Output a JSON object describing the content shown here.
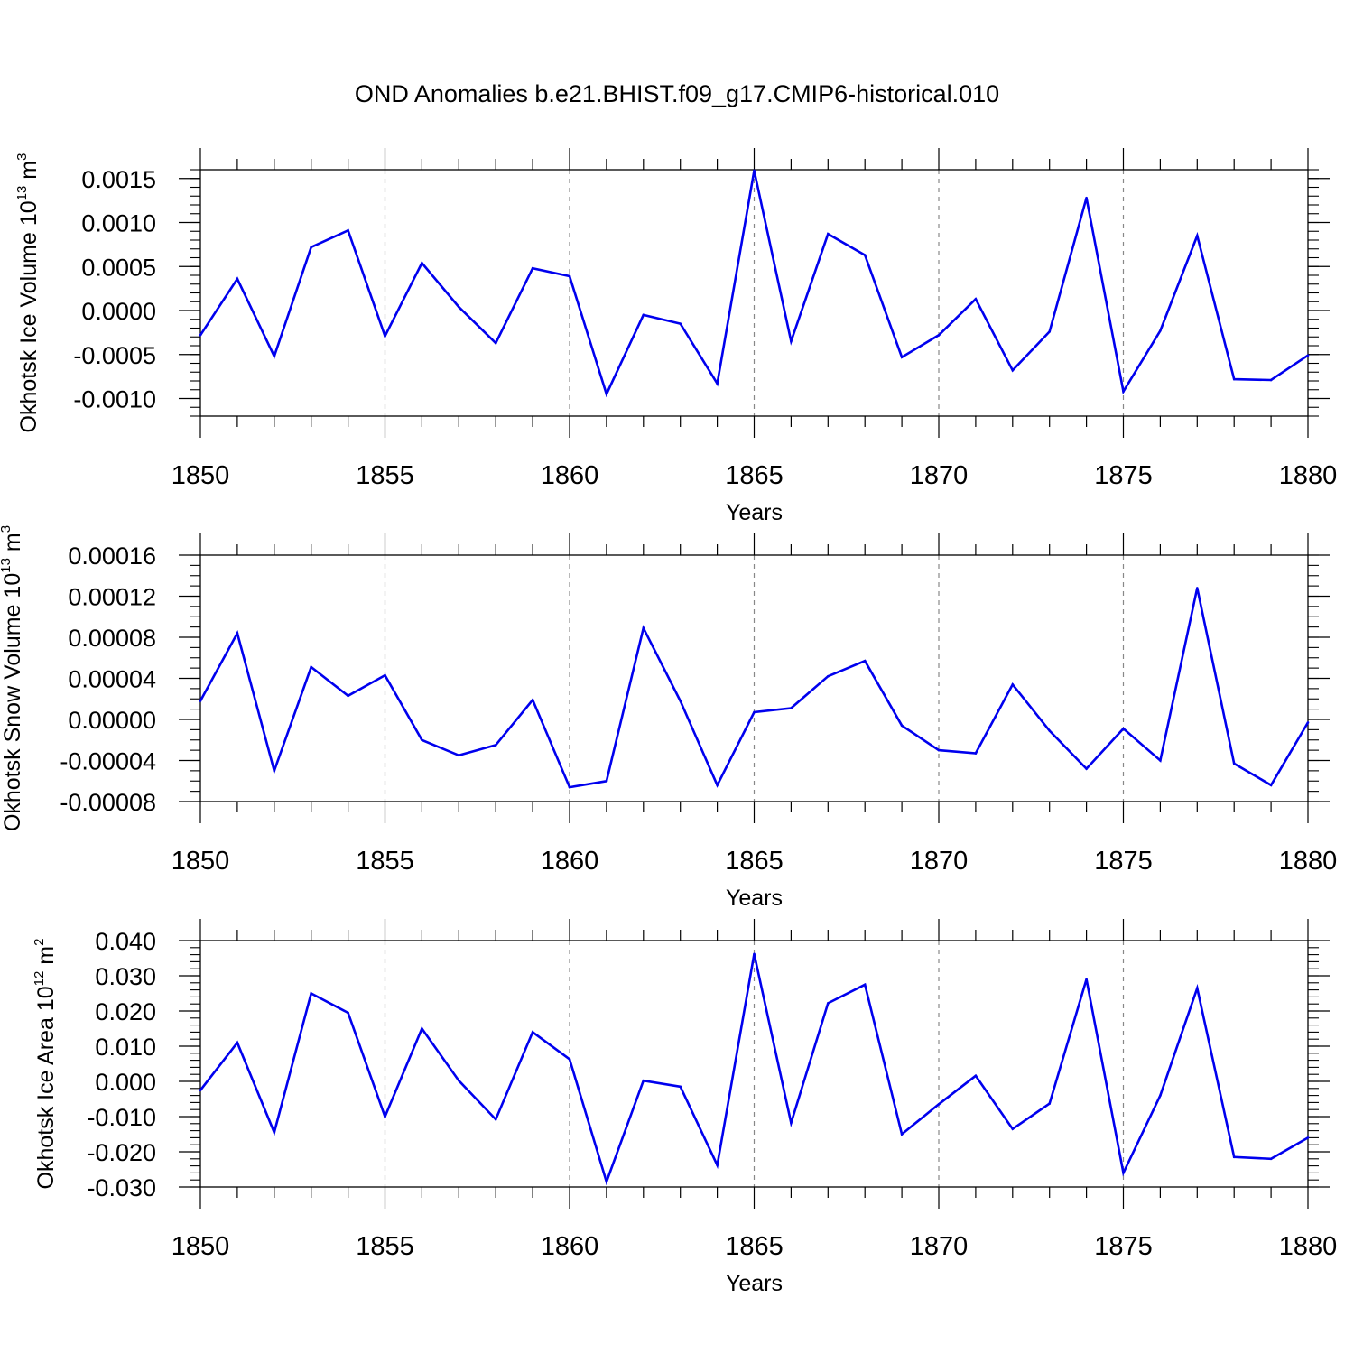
{
  "title": "OND Anomalies b.e21.BHIST.f09_g17.CMIP6-historical.010",
  "colors": {
    "line": "#0000ee",
    "axis": "#000000",
    "grid": "#888888"
  },
  "chart_data": [
    {
      "type": "line",
      "name": "ice-volume",
      "ylabel_text": "Okhotsk Ice Volume 10",
      "ylabel_exp": "13",
      "ylabel_unit": " m",
      "ylabel_unit_exp": "3",
      "xlabel": "Years",
      "xlim": [
        1850,
        1880
      ],
      "ylim": [
        -0.0012,
        0.0016
      ],
      "x_ticks": [
        "1850",
        "1855",
        "1860",
        "1865",
        "1870",
        "1875",
        "1880"
      ],
      "y_ticks": [
        {
          "value": 0.0015,
          "label": "0.0015"
        },
        {
          "value": 0.001,
          "label": "0.0010"
        },
        {
          "value": 0.0005,
          "label": "0.0005"
        },
        {
          "value": 0.0,
          "label": "0.0000"
        },
        {
          "value": -0.0005,
          "label": "-0.0005"
        },
        {
          "value": -0.001,
          "label": "-0.0010"
        }
      ],
      "y_minor_step": 0.0001,
      "x": [
        1850,
        1851,
        1852,
        1853,
        1854,
        1855,
        1856,
        1857,
        1858,
        1859,
        1860,
        1861,
        1862,
        1863,
        1864,
        1865,
        1866,
        1867,
        1868,
        1869,
        1870,
        1871,
        1872,
        1873,
        1874,
        1875,
        1876,
        1877,
        1878,
        1879,
        1880
      ],
      "values": [
        -0.00028,
        0.00036,
        -0.00052,
        0.00072,
        0.00091,
        -0.00029,
        0.00054,
        4e-05,
        -0.00037,
        0.00048,
        0.00039,
        -0.00095,
        -5e-05,
        -0.00015,
        -0.00083,
        0.00159,
        -0.00035,
        0.00087,
        0.00063,
        -0.00053,
        -0.00028,
        0.00013,
        -0.00068,
        -0.00024,
        0.00128,
        -0.00092,
        -0.00023,
        0.00085,
        -0.00078,
        -0.00079,
        -0.00051
      ]
    },
    {
      "type": "line",
      "name": "snow-volume",
      "ylabel_text": "Okhotsk Snow Volume 10",
      "ylabel_exp": "13",
      "ylabel_unit": " m",
      "ylabel_unit_exp": "3",
      "xlabel": "Years",
      "xlim": [
        1850,
        1880
      ],
      "ylim": [
        -8e-05,
        0.00016
      ],
      "x_ticks": [
        "1850",
        "1855",
        "1860",
        "1865",
        "1870",
        "1875",
        "1880"
      ],
      "y_ticks": [
        {
          "value": 0.00016,
          "label": "0.00016"
        },
        {
          "value": 0.00012,
          "label": "0.00012"
        },
        {
          "value": 8e-05,
          "label": "0.00008"
        },
        {
          "value": 4e-05,
          "label": "0.00004"
        },
        {
          "value": 0.0,
          "label": "0.00000"
        },
        {
          "value": -4e-05,
          "label": "-0.00004"
        },
        {
          "value": -8e-05,
          "label": "-0.00008"
        }
      ],
      "y_minor_step": 1e-05,
      "x": [
        1850,
        1851,
        1852,
        1853,
        1854,
        1855,
        1856,
        1857,
        1858,
        1859,
        1860,
        1861,
        1862,
        1863,
        1864,
        1865,
        1866,
        1867,
        1868,
        1869,
        1870,
        1871,
        1872,
        1873,
        1874,
        1875,
        1876,
        1877,
        1878,
        1879,
        1880
      ],
      "values": [
        1.8e-05,
        8.4e-05,
        -5e-05,
        5.1e-05,
        2.3e-05,
        4.3e-05,
        -2e-05,
        -3.5e-05,
        -2.5e-05,
        1.9e-05,
        -6.6e-05,
        -6e-05,
        8.9e-05,
        1.8e-05,
        -6.4e-05,
        7e-06,
        1.1e-05,
        4.2e-05,
        5.7e-05,
        -6e-06,
        -3e-05,
        -3.3e-05,
        3.4e-05,
        -1.1e-05,
        -4.8e-05,
        -9e-06,
        -4e-05,
        0.000128,
        -4.3e-05,
        -6.4e-05,
        -3e-06
      ]
    },
    {
      "type": "line",
      "name": "ice-area",
      "ylabel_text": "Okhotsk Ice Area 10",
      "ylabel_exp": "12",
      "ylabel_unit": " m",
      "ylabel_unit_exp": "2",
      "xlabel": "Years",
      "xlim": [
        1850,
        1880
      ],
      "ylim": [
        -0.03,
        0.04
      ],
      "x_ticks": [
        "1850",
        "1855",
        "1860",
        "1865",
        "1870",
        "1875",
        "1880"
      ],
      "y_ticks": [
        {
          "value": 0.04,
          "label": "0.040"
        },
        {
          "value": 0.03,
          "label": "0.030"
        },
        {
          "value": 0.02,
          "label": "0.020"
        },
        {
          "value": 0.01,
          "label": "0.010"
        },
        {
          "value": 0.0,
          "label": "0.000"
        },
        {
          "value": -0.01,
          "label": "-0.010"
        },
        {
          "value": -0.02,
          "label": "-0.020"
        },
        {
          "value": -0.03,
          "label": "-0.030"
        }
      ],
      "y_minor_step": 0.002,
      "x": [
        1850,
        1851,
        1852,
        1853,
        1854,
        1855,
        1856,
        1857,
        1858,
        1859,
        1860,
        1861,
        1862,
        1863,
        1864,
        1865,
        1866,
        1867,
        1868,
        1869,
        1870,
        1871,
        1872,
        1873,
        1874,
        1875,
        1876,
        1877,
        1878,
        1879,
        1880
      ],
      "values": [
        -0.0025,
        0.011,
        -0.0145,
        0.025,
        0.0195,
        -0.01,
        0.015,
        0.0002,
        -0.0108,
        0.014,
        0.0063,
        -0.0285,
        0.0002,
        -0.0015,
        -0.0238,
        0.0362,
        -0.0118,
        0.0222,
        0.0275,
        -0.015,
        -0.0065,
        0.0016,
        -0.0135,
        -0.0063,
        0.029,
        -0.026,
        -0.004,
        0.0265,
        -0.0215,
        -0.022,
        -0.016
      ]
    }
  ]
}
